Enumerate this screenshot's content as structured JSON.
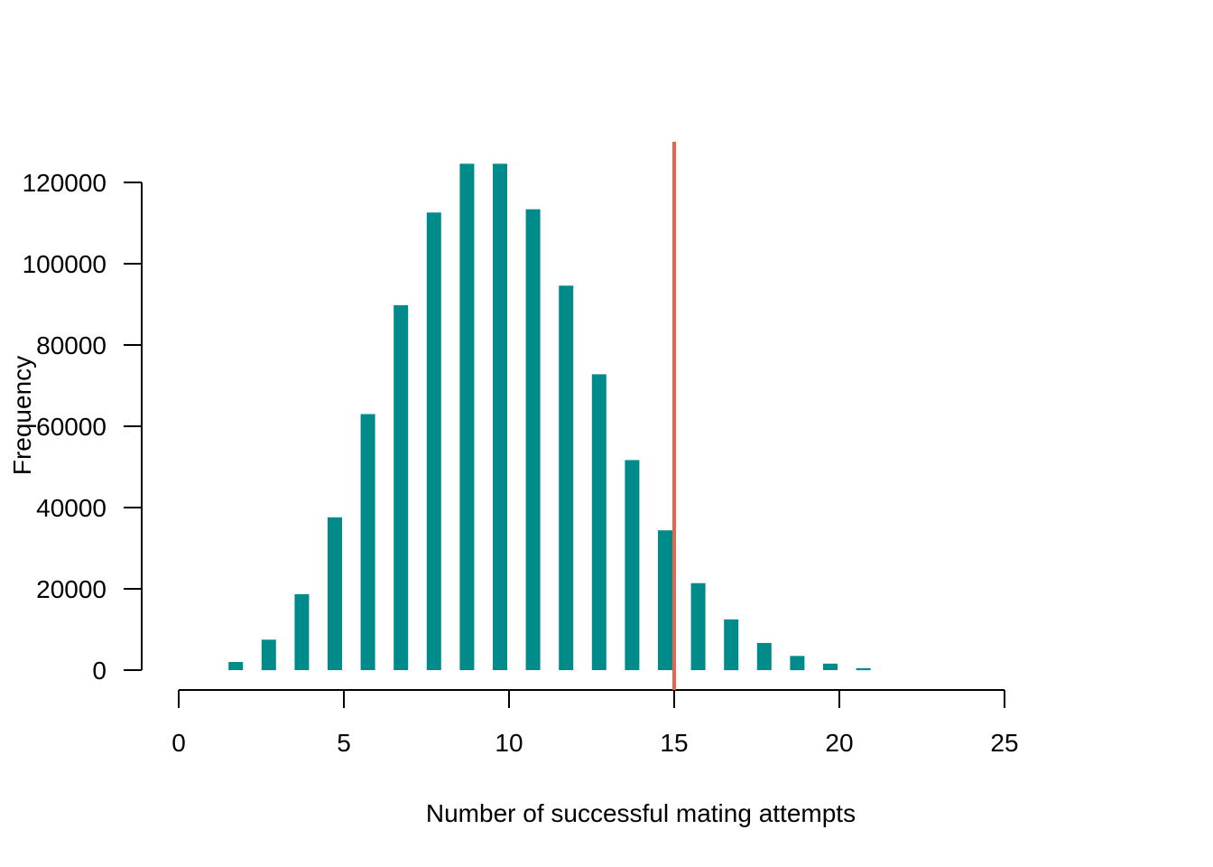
{
  "chart_data": {
    "type": "bar",
    "xlabel": "Number of successful mating attempts",
    "ylabel": "Frequency",
    "xlim": [
      0,
      25
    ],
    "ylim": [
      0,
      130000
    ],
    "x_ticks": [
      0,
      5,
      10,
      15,
      20,
      25
    ],
    "y_ticks": [
      0,
      20000,
      40000,
      60000,
      80000,
      100000,
      120000
    ],
    "x_tick_labels": [
      "0",
      "5",
      "10",
      "15",
      "20",
      "25"
    ],
    "y_tick_labels": [
      "0",
      "20000",
      "40000",
      "60000",
      "80000",
      "100000",
      "120000"
    ],
    "bar_color": "#008B8B",
    "grid": false,
    "categories": [
      0,
      1,
      2,
      3,
      4,
      5,
      6,
      7,
      8,
      9,
      10,
      11,
      12,
      13,
      14,
      15,
      16,
      17,
      18,
      19,
      20,
      21,
      22,
      23,
      24,
      25
    ],
    "values": [
      0,
      0,
      2000,
      7500,
      18700,
      37600,
      63000,
      89800,
      112600,
      124600,
      124600,
      113400,
      94600,
      72800,
      51700,
      34400,
      21400,
      12500,
      6700,
      3500,
      1600,
      500,
      0,
      0,
      0,
      0
    ],
    "reference_line": {
      "x": 15,
      "color": "#E8644B"
    }
  }
}
